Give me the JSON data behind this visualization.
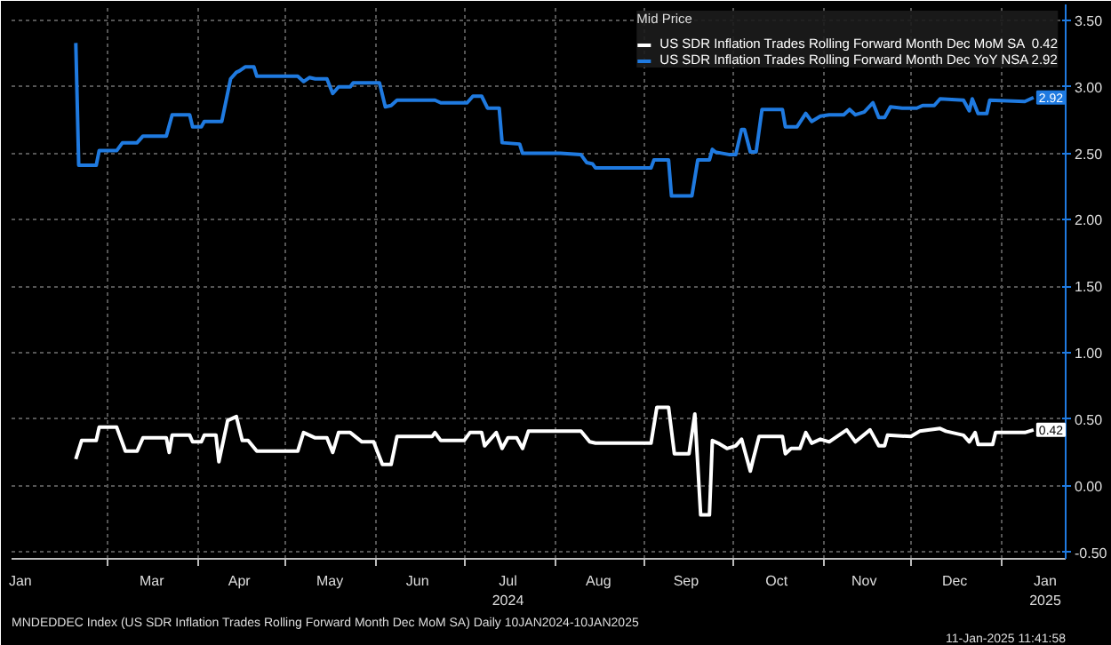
{
  "chart_data": {
    "type": "line",
    "legend_title": "Mid Price",
    "legend": "top right",
    "grid": true,
    "line_style": "solid",
    "xlim": [
      "2024-01-28",
      "2025-01-23"
    ],
    "xticks": [
      {
        "value": "2024-01-31",
        "label": "Jan"
      },
      {
        "value": "2024-03-16",
        "label": "Mar"
      },
      {
        "value": "2024-04-15",
        "label": "Apr"
      },
      {
        "value": "2024-05-16",
        "label": "May"
      },
      {
        "value": "2024-06-15",
        "label": "Jun"
      },
      {
        "value": "2024-07-16",
        "label": "Jul\n2024"
      },
      {
        "value": "2024-08-16",
        "label": "Aug"
      },
      {
        "value": "2024-09-15",
        "label": "Sep"
      },
      {
        "value": "2024-10-16",
        "label": "Oct"
      },
      {
        "value": "2024-11-15",
        "label": "Nov"
      },
      {
        "value": "2024-12-16",
        "label": "Dec"
      },
      {
        "value": "2025-01-16",
        "label": "Jan\n2025"
      },
      {
        "value": "2024-03-01",
        "label": null
      },
      {
        "value": "2024-04-01",
        "label": null
      },
      {
        "value": "2024-05-01",
        "label": null
      },
      {
        "value": "2024-06-01",
        "label": null
      },
      {
        "value": "2024-07-01",
        "label": null
      },
      {
        "value": "2024-08-01",
        "label": null
      },
      {
        "value": "2024-09-01",
        "label": null
      },
      {
        "value": "2024-10-01",
        "label": null
      },
      {
        "value": "2024-11-01",
        "label": null
      },
      {
        "value": "2024-12-01",
        "label": null
      },
      {
        "value": "2025-01-01",
        "label": null
      }
    ],
    "ylim": [
      -0.55,
      3.62
    ],
    "yticks": [
      {
        "value": -0.5,
        "label": "-0.50"
      },
      {
        "value": 0,
        "label": "0.00"
      },
      {
        "value": 0.5,
        "label": "0.50"
      },
      {
        "value": 1,
        "label": "1.00"
      },
      {
        "value": 1.5,
        "label": "1.50"
      },
      {
        "value": 2,
        "label": "2.00"
      },
      {
        "value": 2.5,
        "label": "2.50"
      },
      {
        "value": 3,
        "label": "3.00"
      },
      {
        "value": 3.5,
        "label": "3.50"
      }
    ],
    "series": [
      {
        "name": "US SDR Inflation Trades Rolling Forward Month Dec MoM SA  0.42",
        "color": "#ffffff",
        "x": [
          "2024-02-19",
          "2024-02-21",
          "2024-02-26",
          "2024-02-27",
          "2024-03-04",
          "2024-03-07",
          "2024-03-11",
          "2024-03-13",
          "2024-03-21",
          "2024-03-22",
          "2024-03-23",
          "2024-03-29",
          "2024-03-30",
          "2024-04-02",
          "2024-04-03",
          "2024-04-07",
          "2024-04-08",
          "2024-04-11",
          "2024-04-14",
          "2024-04-16",
          "2024-04-18",
          "2024-04-21",
          "2024-05-05",
          "2024-05-07",
          "2024-05-11",
          "2024-05-15",
          "2024-05-17",
          "2024-05-19",
          "2024-05-23",
          "2024-05-27",
          "2024-05-31",
          "2024-06-03",
          "2024-06-06",
          "2024-06-08",
          "2024-06-20",
          "2024-06-21",
          "2024-06-23",
          "2024-07-01",
          "2024-07-03",
          "2024-07-07",
          "2024-07-08",
          "2024-07-12",
          "2024-07-14",
          "2024-07-16",
          "2024-07-19",
          "2024-07-21",
          "2024-07-23",
          "2024-08-10",
          "2024-08-13",
          "2024-08-15",
          "2024-09-03",
          "2024-09-05",
          "2024-09-09",
          "2024-09-11",
          "2024-09-16",
          "2024-09-18",
          "2024-09-20",
          "2024-09-23",
          "2024-09-24",
          "2024-09-26",
          "2024-09-29",
          "2024-10-02",
          "2024-10-04",
          "2024-10-07",
          "2024-10-08",
          "2024-10-10",
          "2024-10-18",
          "2024-10-19",
          "2024-10-21",
          "2024-10-24",
          "2024-10-26",
          "2024-10-28",
          "2024-10-31",
          "2024-11-03",
          "2024-11-09",
          "2024-11-12",
          "2024-11-17",
          "2024-11-20",
          "2024-11-22",
          "2024-11-23",
          "2024-12-01",
          "2024-12-04",
          "2024-12-11",
          "2024-12-13",
          "2024-12-19",
          "2024-12-21",
          "2024-12-23",
          "2024-12-24",
          "2024-12-29",
          "2024-12-30",
          "2025-01-09",
          "2025-01-12"
        ],
        "values": [
          0.2,
          0.34,
          0.34,
          0.44,
          0.44,
          0.26,
          0.26,
          0.36,
          0.36,
          0.25,
          0.38,
          0.38,
          0.33,
          0.33,
          0.38,
          0.38,
          0.18,
          0.49,
          0.52,
          0.34,
          0.34,
          0.26,
          0.26,
          0.4,
          0.36,
          0.36,
          0.25,
          0.4,
          0.4,
          0.33,
          0.33,
          0.16,
          0.16,
          0.37,
          0.37,
          0.4,
          0.34,
          0.34,
          0.4,
          0.4,
          0.3,
          0.4,
          0.28,
          0.36,
          0.36,
          0.28,
          0.41,
          0.41,
          0.33,
          0.32,
          0.32,
          0.59,
          0.59,
          0.24,
          0.24,
          0.54,
          -0.22,
          -0.22,
          0.34,
          0.32,
          0.28,
          0.3,
          0.35,
          0.11,
          0.2,
          0.37,
          0.37,
          0.24,
          0.28,
          0.28,
          0.4,
          0.32,
          0.35,
          0.33,
          0.42,
          0.33,
          0.42,
          0.3,
          0.3,
          0.38,
          0.37,
          0.41,
          0.43,
          0.41,
          0.38,
          0.33,
          0.4,
          0.31,
          0.31,
          0.4,
          0.4,
          0.42
        ]
      },
      {
        "name": "US SDR Inflation Trades Rolling Forward Month Dec YoY NSA 2.92",
        "color": "#1f7ae0",
        "x": [
          "2024-02-19",
          "2024-02-20",
          "2024-02-26",
          "2024-02-27",
          "2024-03-04",
          "2024-03-06",
          "2024-03-11",
          "2024-03-13",
          "2024-03-21",
          "2024-03-23",
          "2024-03-29",
          "2024-03-30",
          "2024-04-02",
          "2024-04-03",
          "2024-04-09",
          "2024-04-12",
          "2024-04-14",
          "2024-04-15",
          "2024-04-17",
          "2024-04-20",
          "2024-04-21",
          "2024-05-05",
          "2024-05-07",
          "2024-05-09",
          "2024-05-11",
          "2024-05-15",
          "2024-05-17",
          "2024-05-19",
          "2024-05-23",
          "2024-05-24",
          "2024-06-02",
          "2024-06-04",
          "2024-06-06",
          "2024-06-08",
          "2024-06-21",
          "2024-06-23",
          "2024-07-02",
          "2024-07-04",
          "2024-07-07",
          "2024-07-09",
          "2024-07-13",
          "2024-07-14",
          "2024-07-20",
          "2024-07-21",
          "2024-08-03",
          "2024-08-10",
          "2024-08-12",
          "2024-08-14",
          "2024-08-15",
          "2024-09-03",
          "2024-09-04",
          "2024-09-09",
          "2024-09-10",
          "2024-09-17",
          "2024-09-19",
          "2024-09-23",
          "2024-09-24",
          "2024-09-25",
          "2024-09-30",
          "2024-10-02",
          "2024-10-04",
          "2024-10-05",
          "2024-10-07",
          "2024-10-09",
          "2024-10-11",
          "2024-10-18",
          "2024-10-19",
          "2024-10-23",
          "2024-10-26",
          "2024-10-28",
          "2024-10-31",
          "2024-11-03",
          "2024-11-08",
          "2024-11-10",
          "2024-11-12",
          "2024-11-15",
          "2024-11-18",
          "2024-11-20",
          "2024-11-22",
          "2024-11-24",
          "2024-11-28",
          "2024-12-03",
          "2024-12-05",
          "2024-12-09",
          "2024-12-11",
          "2024-12-19",
          "2024-12-21",
          "2024-12-22",
          "2024-12-24",
          "2024-12-27",
          "2024-12-28",
          "2025-01-09",
          "2025-01-12"
        ],
        "values": [
          3.33,
          2.41,
          2.41,
          2.52,
          2.52,
          2.58,
          2.58,
          2.63,
          2.63,
          2.79,
          2.79,
          2.7,
          2.7,
          2.74,
          2.74,
          3.06,
          3.11,
          3.12,
          3.15,
          3.15,
          3.08,
          3.08,
          3.04,
          3.07,
          3.06,
          3.06,
          2.95,
          3.0,
          3.0,
          3.03,
          3.03,
          2.85,
          2.86,
          2.9,
          2.9,
          2.88,
          2.88,
          2.93,
          2.93,
          2.84,
          2.84,
          2.58,
          2.57,
          2.5,
          2.5,
          2.49,
          2.43,
          2.42,
          2.39,
          2.39,
          2.45,
          2.45,
          2.18,
          2.18,
          2.45,
          2.45,
          2.53,
          2.51,
          2.49,
          2.49,
          2.68,
          2.68,
          2.51,
          2.51,
          2.83,
          2.83,
          2.7,
          2.7,
          2.8,
          2.74,
          2.78,
          2.79,
          2.79,
          2.83,
          2.79,
          2.81,
          2.88,
          2.77,
          2.77,
          2.85,
          2.84,
          2.84,
          2.86,
          2.86,
          2.91,
          2.9,
          2.82,
          2.91,
          2.8,
          2.8,
          2.9,
          2.89,
          2.92
        ]
      }
    ],
    "annotations": [
      {
        "text": "2.92",
        "x": "2025-01-12",
        "y": 2.92
      },
      {
        "text": "0.42",
        "x": "2025-01-12",
        "y": 0.42
      },
      "MNDEDDEC Index (US SDR Inflation Trades Rolling Forward Month Dec MoM SA)  Daily 10JAN2024-10JAN2025",
      "11-Jan-2025 11:41:58"
    ]
  }
}
